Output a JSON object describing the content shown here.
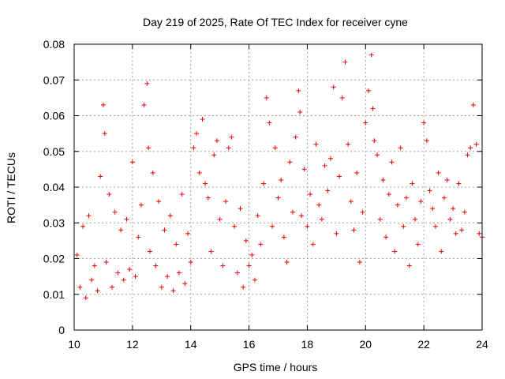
{
  "chart_data": {
    "type": "scatter",
    "title": "Day 219 of 2025, Rate Of TEC Index for receiver cyne",
    "xlabel": "GPS time / hours",
    "ylabel": "ROTI / TECUs",
    "xlim": [
      10,
      24
    ],
    "ylim": [
      0,
      0.08
    ],
    "x_ticks": [
      "10",
      "12",
      "14",
      "16",
      "18",
      "20",
      "22",
      "24"
    ],
    "y_ticks": [
      "0",
      "0.01",
      "0.02",
      "0.03",
      "0.04",
      "0.05",
      "0.06",
      "0.07",
      "0.08"
    ],
    "grid": true,
    "marker": "+",
    "color": "#ee0000",
    "series": [
      {
        "x": [
          10.1,
          10.2,
          10.3,
          10.4,
          10.5,
          10.6,
          10.7,
          10.8,
          10.9,
          11.0,
          11.05,
          11.1,
          11.2,
          11.3,
          11.4,
          11.5,
          11.6,
          11.7,
          11.8,
          11.9,
          12.0,
          12.1,
          12.2,
          12.3,
          12.4,
          12.5,
          12.55,
          12.6,
          12.7,
          12.8,
          12.9,
          13.0,
          13.1,
          13.2,
          13.3,
          13.4,
          13.5,
          13.6,
          13.7,
          13.8,
          13.9,
          14.0,
          14.1,
          14.2,
          14.3,
          14.4,
          14.5,
          14.6,
          14.7,
          14.8,
          14.9,
          15.0,
          15.1,
          15.2,
          15.3,
          15.4,
          15.5,
          15.6,
          15.7,
          15.8,
          15.9,
          16.0,
          16.1,
          16.2,
          16.3,
          16.4,
          16.5,
          16.6,
          16.7,
          16.8,
          16.9,
          17.0,
          17.1,
          17.2,
          17.3,
          17.4,
          17.5,
          17.6,
          17.7,
          17.75,
          17.8,
          17.9,
          18.0,
          18.1,
          18.2,
          18.3,
          18.4,
          18.5,
          18.6,
          18.7,
          18.8,
          18.9,
          19.0,
          19.1,
          19.2,
          19.3,
          19.4,
          19.5,
          19.6,
          19.7,
          19.8,
          19.9,
          20.0,
          20.1,
          20.2,
          20.25,
          20.3,
          20.4,
          20.5,
          20.6,
          20.7,
          20.8,
          20.9,
          21.0,
          21.1,
          21.2,
          21.3,
          21.4,
          21.5,
          21.6,
          21.7,
          21.8,
          21.9,
          22.0,
          22.1,
          22.2,
          22.3,
          22.4,
          22.5,
          22.6,
          22.7,
          22.8,
          22.9,
          23.0,
          23.1,
          23.2,
          23.3,
          23.4,
          23.5,
          23.6,
          23.7,
          23.8,
          23.9,
          24.0
        ],
        "y": [
          0.021,
          0.012,
          0.029,
          0.009,
          0.032,
          0.014,
          0.018,
          0.011,
          0.043,
          0.063,
          0.055,
          0.019,
          0.038,
          0.012,
          0.033,
          0.016,
          0.028,
          0.014,
          0.031,
          0.017,
          0.047,
          0.015,
          0.026,
          0.035,
          0.063,
          0.069,
          0.051,
          0.022,
          0.044,
          0.018,
          0.036,
          0.012,
          0.028,
          0.015,
          0.032,
          0.011,
          0.024,
          0.016,
          0.038,
          0.013,
          0.027,
          0.019,
          0.051,
          0.055,
          0.044,
          0.059,
          0.041,
          0.037,
          0.022,
          0.049,
          0.053,
          0.031,
          0.018,
          0.036,
          0.051,
          0.054,
          0.029,
          0.016,
          0.034,
          0.012,
          0.025,
          0.018,
          0.021,
          0.014,
          0.032,
          0.024,
          0.041,
          0.065,
          0.058,
          0.029,
          0.051,
          0.037,
          0.042,
          0.026,
          0.019,
          0.047,
          0.033,
          0.054,
          0.067,
          0.061,
          0.032,
          0.045,
          0.029,
          0.038,
          0.024,
          0.052,
          0.035,
          0.031,
          0.046,
          0.039,
          0.048,
          0.068,
          0.027,
          0.043,
          0.065,
          0.075,
          0.052,
          0.036,
          0.028,
          0.044,
          0.019,
          0.033,
          0.058,
          0.067,
          0.077,
          0.062,
          0.053,
          0.049,
          0.031,
          0.042,
          0.026,
          0.038,
          0.047,
          0.022,
          0.035,
          0.051,
          0.029,
          0.037,
          0.018,
          0.041,
          0.031,
          0.024,
          0.036,
          0.058,
          0.053,
          0.039,
          0.034,
          0.029,
          0.044,
          0.022,
          0.037,
          0.042,
          0.031,
          0.034,
          0.027,
          0.041,
          0.028,
          0.033,
          0.049,
          0.051,
          0.063,
          0.052,
          0.027,
          0.026
        ]
      }
    ]
  }
}
